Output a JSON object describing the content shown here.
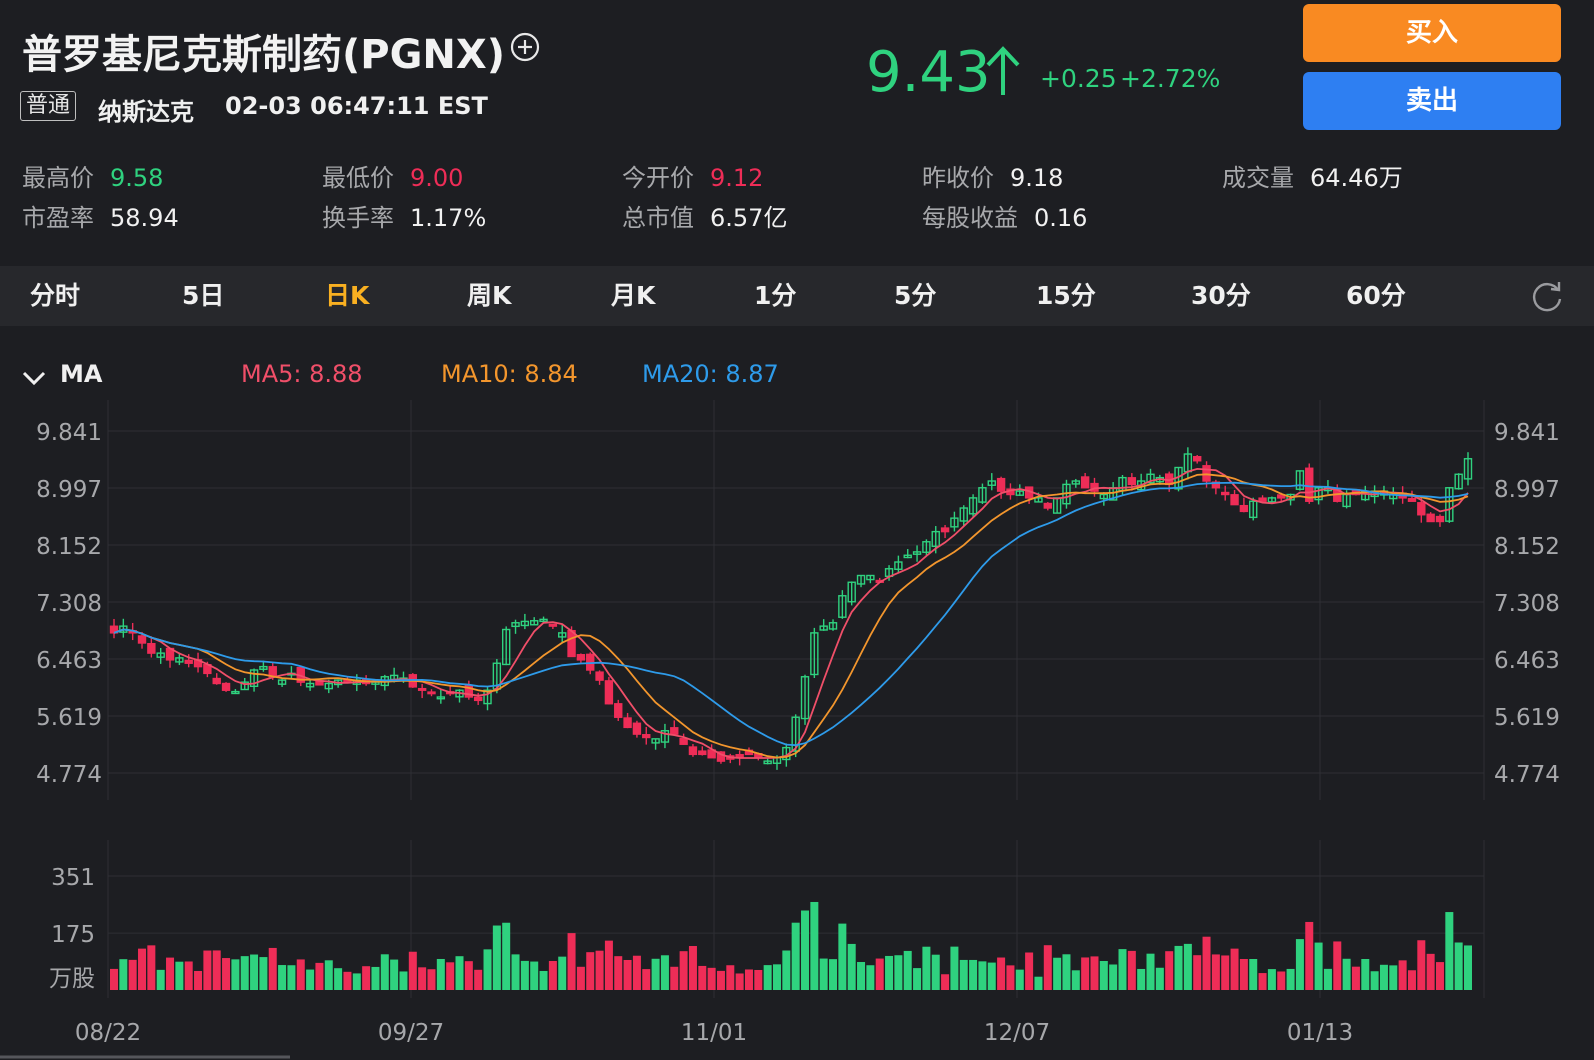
{
  "header": {
    "title": "普罗基尼克斯制药(PGNX)",
    "tag": "普通",
    "exchange": "纳斯达克",
    "datetime": "02-03 06:47:11 EST",
    "price": "9.43",
    "change": "+0.25",
    "change_pct": "+2.72%",
    "up_color": "#2fd27f",
    "down_color": "#ee2d57"
  },
  "actions": {
    "buy": "买入",
    "sell": "卖出"
  },
  "stats": [
    {
      "label": "最高价",
      "value": "9.58",
      "color": "#2fd27f"
    },
    {
      "label": "最低价",
      "value": "9.00",
      "color": "#ee2d57"
    },
    {
      "label": "今开价",
      "value": "9.12",
      "color": "#ee2d57"
    },
    {
      "label": "昨收价",
      "value": "9.18",
      "color": "#f1f1f1"
    },
    {
      "label": "成交量",
      "value": "64.46万",
      "color": "#f1f1f1"
    },
    {
      "label": "市盈率",
      "value": "58.94",
      "color": "#f1f1f1"
    },
    {
      "label": "换手率",
      "value": "1.17%",
      "color": "#f1f1f1"
    },
    {
      "label": "总市值",
      "value": "6.57亿",
      "color": "#f1f1f1"
    },
    {
      "label": "每股收益",
      "value": "0.16",
      "color": "#f1f1f1"
    }
  ],
  "tabs": [
    "分时",
    "5日",
    "日K",
    "周K",
    "月K",
    "1分",
    "5分",
    "15分",
    "30分",
    "60分"
  ],
  "active_tab": "日K",
  "ma": {
    "label": "MA",
    "items": [
      {
        "text": "MA5: 8.88",
        "color": "#f04f69"
      },
      {
        "text": "MA10: 8.84",
        "color": "#f3962d"
      },
      {
        "text": "MA20: 8.87",
        "color": "#2e9bea"
      }
    ]
  },
  "chart_data": {
    "type": "candlestick",
    "price_axis_ticks": [
      "9.841",
      "8.997",
      "8.152",
      "7.308",
      "6.463",
      "5.619",
      "4.774"
    ],
    "price_range": [
      4.774,
      9.841
    ],
    "volume_axis_ticks": [
      "351",
      "175"
    ],
    "volume_unit": "万股",
    "volume_range": [
      0,
      351
    ],
    "x_tick_labels": [
      "08/22",
      "09/27",
      "11/01",
      "12/07",
      "01/13"
    ],
    "ohlc_close_series": [
      6.85,
      6.95,
      6.85,
      6.7,
      6.55,
      6.55,
      6.45,
      6.48,
      6.4,
      6.35,
      6.25,
      6.1,
      6.0,
      5.98,
      6.12,
      6.3,
      6.35,
      6.2,
      6.15,
      6.25,
      6.12,
      6.1,
      6.08,
      6.1,
      6.15,
      6.12,
      6.15,
      6.1,
      6.12,
      6.2,
      6.22,
      6.18,
      6.05,
      6.0,
      5.95,
      5.9,
      5.95,
      6.0,
      5.9,
      5.85,
      6.0,
      6.4,
      6.9,
      7.0,
      7.02,
      7.03,
      7.05,
      6.95,
      6.85,
      6.5,
      6.45,
      6.3,
      6.15,
      5.8,
      5.6,
      5.45,
      5.35,
      5.3,
      5.28,
      5.4,
      5.35,
      5.2,
      5.05,
      5.05,
      5.0,
      4.95,
      4.98,
      5.0,
      5.05,
      5.0,
      4.95,
      5.0,
      5.15,
      5.6,
      6.2,
      6.85,
      6.95,
      7.0,
      7.4,
      7.6,
      7.7,
      7.7,
      7.6,
      7.8,
      7.9,
      8.0,
      8.05,
      8.2,
      8.35,
      8.35,
      8.55,
      8.7,
      8.85,
      9.0,
      9.1,
      8.95,
      8.9,
      8.95,
      8.85,
      8.85,
      8.7,
      8.85,
      9.05,
      9.1,
      9.0,
      8.95,
      8.9,
      9.0,
      9.15,
      9.05,
      9.1,
      9.2,
      9.15,
      9.05,
      9.3,
      9.5,
      9.4,
      9.1,
      9.0,
      8.9,
      8.75,
      8.65,
      8.8,
      8.8,
      8.85,
      8.85,
      8.9,
      9.25,
      8.8,
      9.0,
      9.0,
      8.8,
      8.9,
      8.9,
      8.95,
      8.95,
      8.95,
      8.9,
      8.85,
      8.8,
      8.6,
      8.5,
      8.5,
      9.0,
      9.2,
      9.43
    ],
    "ma5_last": 8.88,
    "ma10_last": 8.84,
    "ma20_last": 8.87
  }
}
